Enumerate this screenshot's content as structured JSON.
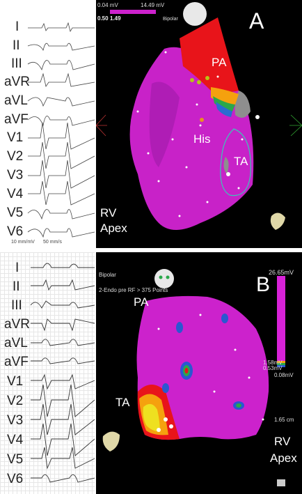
{
  "panelA": {
    "letter": "A",
    "leads": [
      "I",
      "II",
      "III",
      "aVR",
      "aVL",
      "aVF",
      "V1",
      "V2",
      "V3",
      "V4",
      "V5",
      "V6"
    ],
    "ecg_footer_gain": "10 mm/mV",
    "ecg_footer_speed": "50 mm/s",
    "scale_min_top": "0.04 mV",
    "scale_max_top": "14.49 mV",
    "scale_low": "0.50",
    "scale_high": "1.49",
    "mode": "Bipolar",
    "labels": {
      "pa": "PA",
      "his": "His",
      "ta": "TA",
      "rv": "RV",
      "apex": "Apex"
    }
  },
  "panelB": {
    "letter": "B",
    "leads": [
      "I",
      "II",
      "III",
      "aVR",
      "aVL",
      "aVF",
      "V1",
      "V2",
      "V3",
      "V4",
      "V5",
      "V6"
    ],
    "mode": "Bipolar",
    "map_name": "2-Endo pre RF > 375 Points",
    "scale_max": "26.65mV",
    "scale_mid_a": "1.58mV",
    "scale_mid_b": "0.53mV",
    "scale_min": "0.08mV",
    "distance": "1.65 cm",
    "labels": {
      "pa": "PA",
      "ta": "TA",
      "rv": "RV",
      "apex": "Apex"
    }
  },
  "colors": {
    "magenta": "#cc22cc",
    "red": "#e8141a",
    "grey": "#9a9a9a",
    "map_bg": "#000000"
  }
}
